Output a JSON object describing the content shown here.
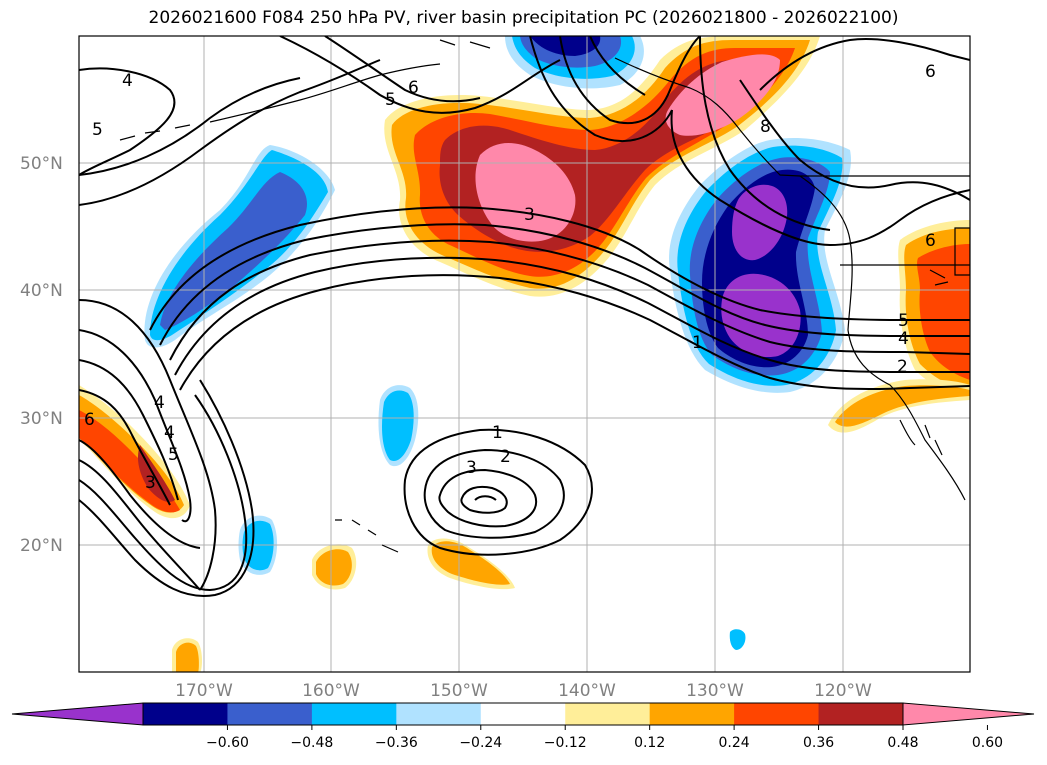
{
  "title": "2026021600 F084 250 hPa PV, river basin precipitation PC (2026021800 - 2026022100)",
  "map": {
    "lat_labels": [
      "50°N",
      "40°N",
      "30°N",
      "20°N"
    ],
    "lon_labels": [
      "170°W",
      "160°W",
      "150°W",
      "140°W",
      "130°W",
      "120°W"
    ],
    "pv_contour_labels": [
      "4",
      "5",
      "6",
      "5",
      "6",
      "8",
      "3",
      "1",
      "2",
      "3",
      "4",
      "5",
      "4",
      "3",
      "6",
      "5",
      "4",
      "2",
      "1",
      "6"
    ]
  },
  "colorbar": {
    "ticks": [
      "−0.60",
      "−0.48",
      "−0.36",
      "−0.24",
      "−0.12",
      "0.12",
      "0.24",
      "0.36",
      "0.48",
      "0.60"
    ],
    "colors": [
      "#9932cc",
      "#00008b",
      "#3a5fcd",
      "#00bfff",
      "#b0e2ff",
      "#ffffff",
      "#ffee99",
      "#ffa500",
      "#ff4500",
      "#b22222",
      "#ff88aa"
    ]
  }
}
